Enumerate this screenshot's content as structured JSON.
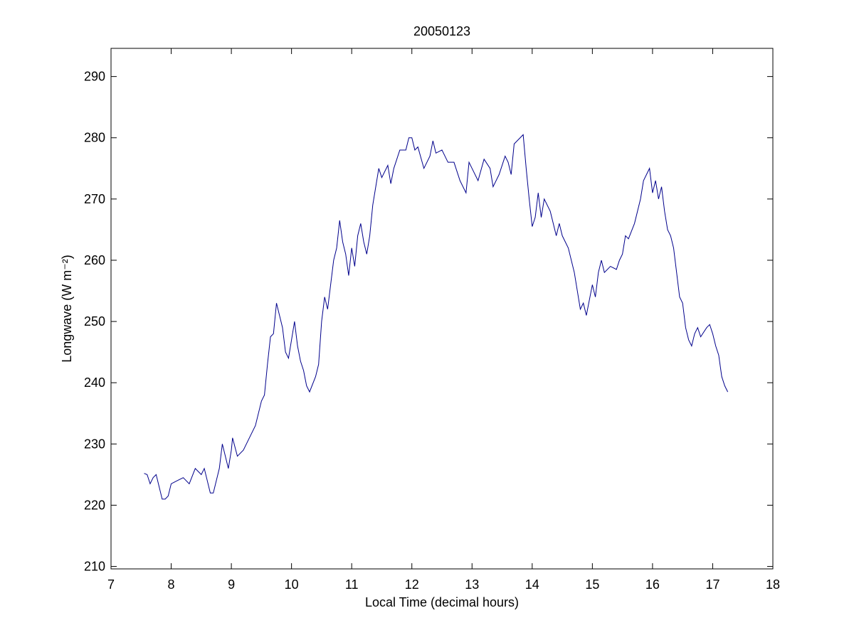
{
  "chart_data": {
    "type": "line",
    "title": "20050123",
    "x_label": "Local Time (decimal hours)",
    "y_label": "Longwave (W m⁻²)",
    "xlim": [
      7,
      18
    ],
    "xticks": [
      7,
      8,
      9,
      10,
      11,
      12,
      13,
      14,
      15,
      16,
      17,
      18
    ],
    "ylim": [
      209.6,
      294.6
    ],
    "yticks": [
      210,
      220,
      230,
      240,
      250,
      260,
      270,
      280,
      290
    ],
    "grid": false,
    "series": [
      {
        "color": "#00008b",
        "x": [
          7.55,
          7.6,
          7.65,
          7.7,
          7.75,
          7.8,
          7.85,
          7.9,
          7.95,
          8.0,
          8.1,
          8.2,
          8.3,
          8.4,
          8.5,
          8.55,
          8.65,
          8.7,
          8.75,
          8.8,
          8.85,
          8.9,
          8.95,
          9.0,
          9.02,
          9.1,
          9.2,
          9.3,
          9.4,
          9.5,
          9.55,
          9.6,
          9.65,
          9.7,
          9.75,
          9.8,
          9.85,
          9.9,
          9.95,
          10.0,
          10.05,
          10.1,
          10.15,
          10.2,
          10.25,
          10.3,
          10.4,
          10.45,
          10.5,
          10.55,
          10.6,
          10.65,
          10.7,
          10.75,
          10.8,
          10.85,
          10.9,
          10.95,
          11.0,
          11.05,
          11.1,
          11.15,
          11.2,
          11.25,
          11.3,
          11.35,
          11.4,
          11.45,
          11.5,
          11.55,
          11.6,
          11.65,
          11.7,
          11.8,
          11.9,
          11.95,
          12.0,
          12.05,
          12.1,
          12.2,
          12.3,
          12.35,
          12.4,
          12.5,
          12.6,
          12.7,
          12.8,
          12.9,
          12.95,
          13.0,
          13.1,
          13.2,
          13.3,
          13.35,
          13.45,
          13.55,
          13.6,
          13.65,
          13.7,
          13.8,
          13.85,
          13.9,
          13.95,
          14.0,
          14.05,
          14.1,
          14.15,
          14.2,
          14.3,
          14.4,
          14.45,
          14.5,
          14.6,
          14.7,
          14.75,
          14.8,
          14.85,
          14.9,
          15.0,
          15.05,
          15.1,
          15.15,
          15.2,
          15.3,
          15.4,
          15.45,
          15.5,
          15.55,
          15.6,
          15.7,
          15.8,
          15.85,
          15.9,
          15.95,
          16.0,
          16.05,
          16.1,
          16.15,
          16.2,
          16.25,
          16.3,
          16.35,
          16.4,
          16.45,
          16.5,
          16.55,
          16.6,
          16.65,
          16.7,
          16.75,
          16.8,
          16.9,
          16.95,
          17.0,
          17.05,
          17.1,
          17.15,
          17.2,
          17.25
        ],
        "values": [
          225.2,
          225,
          223.5,
          224.5,
          225,
          223,
          221,
          221,
          221.5,
          223.5,
          224,
          224.5,
          223.5,
          226,
          225,
          226,
          222,
          222,
          224,
          226,
          230,
          228,
          226,
          229,
          231,
          228,
          229,
          231,
          233,
          237,
          238,
          243,
          247.5,
          248,
          253,
          251,
          249,
          245,
          244,
          247,
          250,
          246,
          243.5,
          242,
          239.5,
          238.5,
          241,
          243,
          250,
          254,
          252,
          256,
          260,
          262,
          266.5,
          263,
          261,
          257.5,
          262,
          259,
          264,
          266,
          263,
          261,
          264,
          269,
          272,
          275,
          273.5,
          274.5,
          275.5,
          272.5,
          275,
          278,
          278,
          280,
          280,
          278,
          278.5,
          275,
          277,
          279.5,
          277.5,
          278,
          276,
          276,
          273,
          271,
          276,
          275,
          273,
          276.5,
          275,
          272,
          274,
          277,
          276,
          274,
          279,
          280,
          280.5,
          275,
          270,
          265.5,
          267,
          271,
          267,
          270,
          268,
          264,
          266,
          264,
          262,
          258,
          255,
          252,
          253,
          251,
          256,
          254,
          258,
          260,
          258,
          259,
          258.5,
          260,
          261,
          264,
          263.5,
          266,
          270,
          273,
          274,
          275,
          271,
          273,
          270,
          272,
          268,
          265,
          264,
          262,
          258,
          254,
          253,
          249,
          247,
          246,
          248,
          249,
          247.5,
          249,
          249.5,
          248,
          246,
          244.5,
          241,
          239.5,
          238.5
        ]
      }
    ]
  }
}
